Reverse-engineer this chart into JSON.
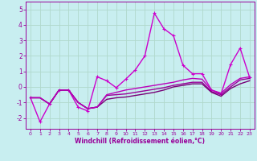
{
  "background_color": "#c8eef0",
  "grid_color": "#b0d8cc",
  "line_color": "#990099",
  "xlabel": "Windchill (Refroidissement éolien,°C)",
  "xlim": [
    -0.5,
    23.5
  ],
  "ylim": [
    -2.7,
    5.5
  ],
  "yticks": [
    -2,
    -1,
    0,
    1,
    2,
    3,
    4,
    5
  ],
  "xticks": [
    0,
    1,
    2,
    3,
    4,
    5,
    6,
    7,
    8,
    9,
    10,
    11,
    12,
    13,
    14,
    15,
    16,
    17,
    18,
    19,
    20,
    21,
    22,
    23
  ],
  "series": [
    {
      "x": [
        0,
        1,
        2,
        3,
        4,
        5,
        6,
        7,
        8,
        9,
        10,
        11,
        12,
        13,
        14,
        15,
        16,
        17,
        18,
        19,
        20,
        21,
        22,
        23
      ],
      "y": [
        -0.7,
        -2.25,
        -1.1,
        -0.2,
        -0.2,
        -1.3,
        -1.55,
        0.65,
        0.4,
        -0.05,
        0.5,
        1.1,
        2.0,
        4.75,
        3.75,
        3.3,
        1.4,
        0.85,
        0.85,
        -0.2,
        -0.45,
        1.45,
        2.5,
        0.6
      ],
      "color": "#cc00cc",
      "lw": 1.0,
      "marker": "+",
      "ms": 3.5
    },
    {
      "x": [
        0,
        1,
        2,
        3,
        4,
        5,
        6,
        7,
        8,
        9,
        10,
        11,
        12,
        13,
        14,
        15,
        16,
        17,
        18,
        19,
        20,
        21,
        22,
        23
      ],
      "y": [
        -0.7,
        -0.7,
        -1.1,
        -0.2,
        -0.2,
        -1.0,
        -1.4,
        -1.3,
        -0.55,
        -0.5,
        -0.45,
        -0.35,
        -0.25,
        -0.15,
        -0.05,
        0.1,
        0.2,
        0.3,
        0.3,
        -0.3,
        -0.5,
        0.0,
        0.45,
        0.55
      ],
      "color": "#990099",
      "lw": 1.0,
      "marker": null,
      "ms": 0
    },
    {
      "x": [
        0,
        1,
        2,
        3,
        4,
        5,
        6,
        7,
        8,
        9,
        10,
        11,
        12,
        13,
        14,
        15,
        16,
        17,
        18,
        19,
        20,
        21,
        22,
        23
      ],
      "y": [
        -0.7,
        -0.7,
        -1.1,
        -0.2,
        -0.2,
        -1.0,
        -1.4,
        -1.3,
        -0.8,
        -0.7,
        -0.65,
        -0.55,
        -0.45,
        -0.35,
        -0.2,
        0.0,
        0.1,
        0.2,
        0.2,
        -0.35,
        -0.6,
        -0.1,
        0.2,
        0.4
      ],
      "color": "#770077",
      "lw": 1.0,
      "marker": null,
      "ms": 0
    },
    {
      "x": [
        0,
        1,
        2,
        3,
        4,
        5,
        6,
        7,
        8,
        9,
        10,
        11,
        12,
        13,
        14,
        15,
        16,
        17,
        18,
        19,
        20,
        21,
        22,
        23
      ],
      "y": [
        -0.7,
        -0.7,
        -1.1,
        -0.2,
        -0.2,
        -1.0,
        -1.4,
        -1.3,
        -0.5,
        -0.35,
        -0.2,
        -0.1,
        0.0,
        0.1,
        0.2,
        0.3,
        0.45,
        0.55,
        0.5,
        -0.2,
        -0.4,
        0.15,
        0.55,
        0.65
      ],
      "color": "#bb00bb",
      "lw": 1.0,
      "marker": null,
      "ms": 0
    }
  ]
}
